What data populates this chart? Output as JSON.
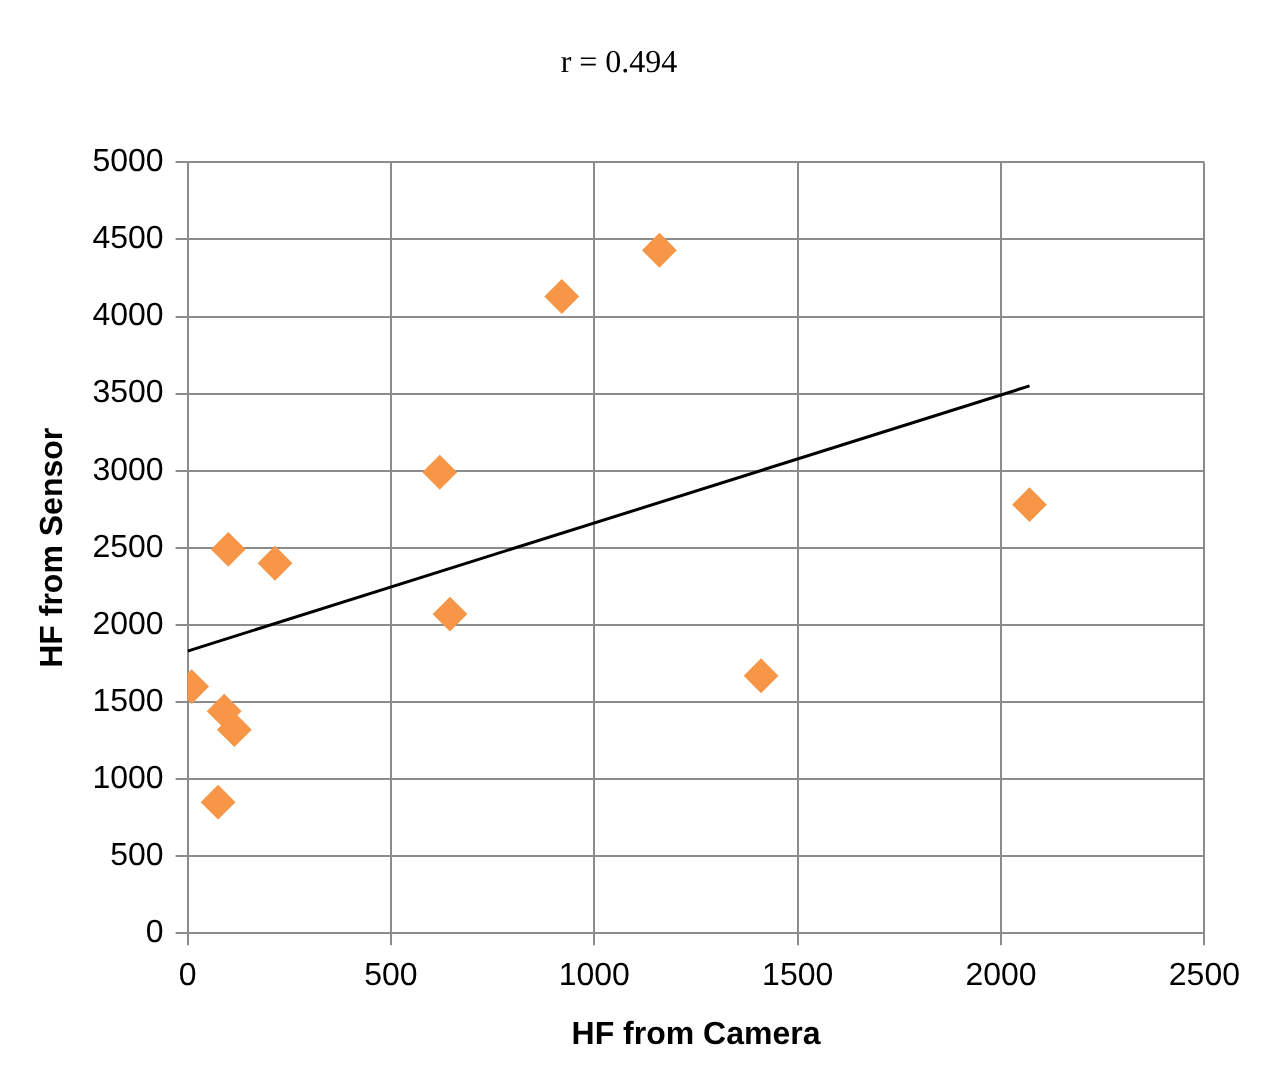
{
  "chart_data": {
    "type": "scatter",
    "title": "r = 0.494",
    "xlabel": "HF from Camera",
    "ylabel": "HF from Sensor",
    "series": [
      {
        "color": "#f79646",
        "marker": "diamond",
        "x": [
          10,
          100,
          215,
          90,
          115,
          75,
          620,
          645,
          920,
          1160,
          1410,
          2070
        ],
        "values": [
          1600,
          2490,
          2400,
          1440,
          1320,
          850,
          2990,
          2070,
          4130,
          4430,
          1670,
          2780
        ]
      },
      {
        "type": "line",
        "color": "#000000",
        "x": [
          0,
          2070
        ],
        "values": [
          1830,
          3550
        ]
      }
    ],
    "xlim": [
      0,
      2500
    ],
    "xticks": [
      0,
      500,
      1000,
      1500,
      2000,
      2500
    ],
    "ylim": [
      0,
      5000
    ],
    "yticks": [
      0,
      500,
      1000,
      1500,
      2000,
      2500,
      3000,
      3500,
      4000,
      4500,
      5000
    ],
    "grid": true,
    "legend": false
  }
}
